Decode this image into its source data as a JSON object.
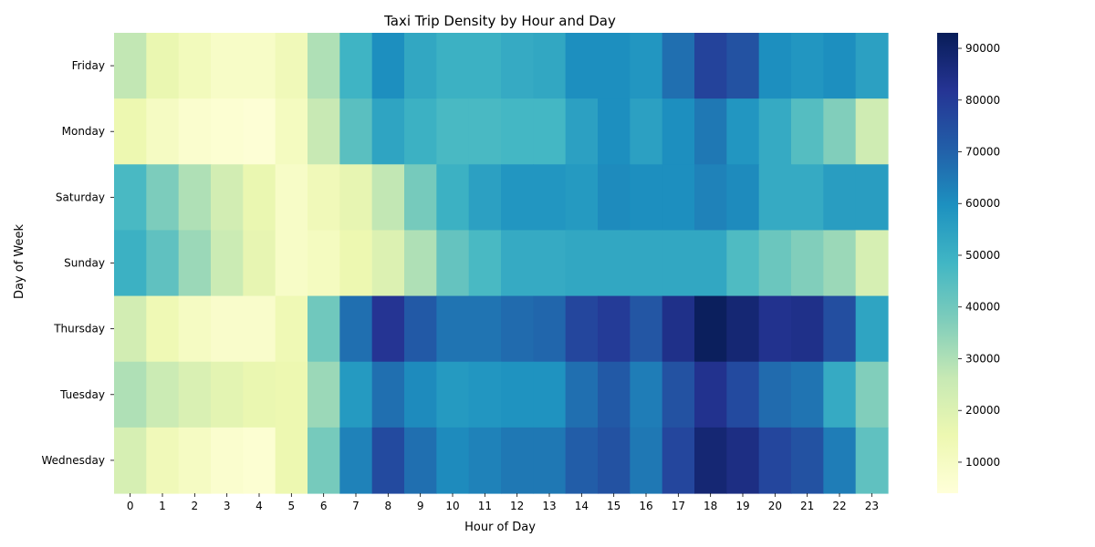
{
  "chart_data": {
    "type": "heatmap",
    "title": "Taxi Trip Density by Hour and Day",
    "xlabel": "Hour of Day",
    "ylabel": "Day of Week",
    "x": [
      "0",
      "1",
      "2",
      "3",
      "4",
      "5",
      "6",
      "7",
      "8",
      "9",
      "10",
      "11",
      "12",
      "13",
      "14",
      "15",
      "16",
      "17",
      "18",
      "19",
      "20",
      "21",
      "22",
      "23"
    ],
    "y": [
      "Friday",
      "Monday",
      "Saturday",
      "Sunday",
      "Thursday",
      "Tuesday",
      "Wednesday"
    ],
    "values": [
      [
        27000,
        16000,
        12000,
        9000,
        9000,
        13000,
        30000,
        49000,
        60000,
        53000,
        50000,
        50000,
        52000,
        53000,
        60000,
        60000,
        58000,
        67000,
        78000,
        74000,
        60000,
        58000,
        60000,
        55000
      ],
      [
        15000,
        10000,
        7000,
        6000,
        5000,
        11000,
        26000,
        44000,
        54000,
        50000,
        47000,
        47000,
        48000,
        48000,
        55000,
        60000,
        55000,
        60000,
        65000,
        58000,
        52000,
        45000,
        37000,
        24000
      ],
      [
        47000,
        38000,
        30000,
        23000,
        16000,
        9000,
        13000,
        17000,
        27000,
        39000,
        50000,
        55000,
        58000,
        58000,
        57000,
        61000,
        60000,
        60000,
        63000,
        61000,
        52000,
        52000,
        56000,
        56000
      ],
      [
        50000,
        43000,
        33000,
        25000,
        17000,
        9000,
        11000,
        15000,
        20000,
        30000,
        42000,
        47000,
        52000,
        52000,
        53000,
        53000,
        53000,
        53000,
        53000,
        46000,
        41000,
        37000,
        33000,
        22000
      ],
      [
        23000,
        14000,
        10000,
        8000,
        8000,
        14000,
        40000,
        67000,
        82000,
        72000,
        66000,
        66000,
        68000,
        69000,
        77000,
        80000,
        73000,
        84000,
        92000,
        88000,
        83000,
        84000,
        75000,
        54000
      ],
      [
        30000,
        25000,
        21000,
        18000,
        16000,
        15000,
        33000,
        57000,
        67000,
        61000,
        57000,
        58000,
        59000,
        59000,
        67000,
        72000,
        64000,
        74000,
        83000,
        76000,
        68000,
        66000,
        52000,
        37000
      ],
      [
        22000,
        13000,
        10000,
        7000,
        6000,
        15000,
        39000,
        63000,
        76000,
        67000,
        61000,
        63000,
        65000,
        65000,
        71000,
        74000,
        65000,
        77000,
        88000,
        85000,
        77000,
        74000,
        64000,
        43000
      ]
    ],
    "colorbar": {
      "min": 4000,
      "max": 93000,
      "ticks": [
        10000,
        20000,
        30000,
        40000,
        50000,
        60000,
        70000,
        80000,
        90000
      ],
      "tick_labels": [
        "10000",
        "20000",
        "30000",
        "40000",
        "50000",
        "60000",
        "70000",
        "80000",
        "90000"
      ]
    },
    "colormap": "YlGnBu",
    "colormap_stops": [
      "#ffffd9",
      "#edf8b1",
      "#c7e9b4",
      "#7fcdbb",
      "#41b6c4",
      "#1d91c0",
      "#225ea8",
      "#253494",
      "#081d58"
    ]
  }
}
